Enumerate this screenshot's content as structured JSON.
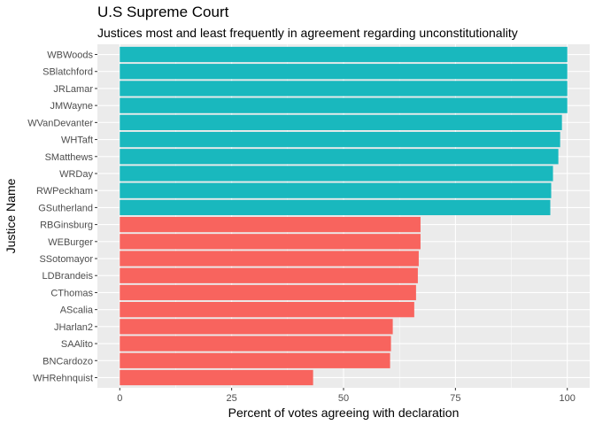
{
  "chart_data": {
    "type": "bar",
    "orientation": "horizontal",
    "title": "U.S Supreme Court",
    "subtitle": "Justices most and least frequently in agreement regarding unconstitutionality",
    "xlabel": "Percent of votes agreeing with declaration",
    "ylabel": "Justice Name",
    "xlim": [
      0,
      100
    ],
    "xticks": [
      0,
      25,
      50,
      75,
      100
    ],
    "grid": true,
    "legend": "none",
    "colors": {
      "top": "#19B8BE",
      "bottom": "#F8645E",
      "panel": "#EBEBEB",
      "grid": "#FFFFFF"
    },
    "categories": [
      "WBWoods",
      "SBlatchford",
      "JRLamar",
      "JMWayne",
      "WVanDevanter",
      "WHTaft",
      "SMatthews",
      "WRDay",
      "RWPeckham",
      "GSutherland",
      "RBGinsburg",
      "WEBurger",
      "SSotomayor",
      "LDBrandeis",
      "CThomas",
      "AScalia",
      "JHarlan2",
      "SAAlito",
      "BNCardozo",
      "WHRehnquist"
    ],
    "values": [
      100,
      100,
      100,
      100,
      98.8,
      98.4,
      98.0,
      96.8,
      96.4,
      96.2,
      67.2,
      67.2,
      66.8,
      66.6,
      66.2,
      65.8,
      61.0,
      60.6,
      60.4,
      43.2
    ],
    "group": [
      "top",
      "top",
      "top",
      "top",
      "top",
      "top",
      "top",
      "top",
      "top",
      "top",
      "bottom",
      "bottom",
      "bottom",
      "bottom",
      "bottom",
      "bottom",
      "bottom",
      "bottom",
      "bottom",
      "bottom"
    ]
  }
}
